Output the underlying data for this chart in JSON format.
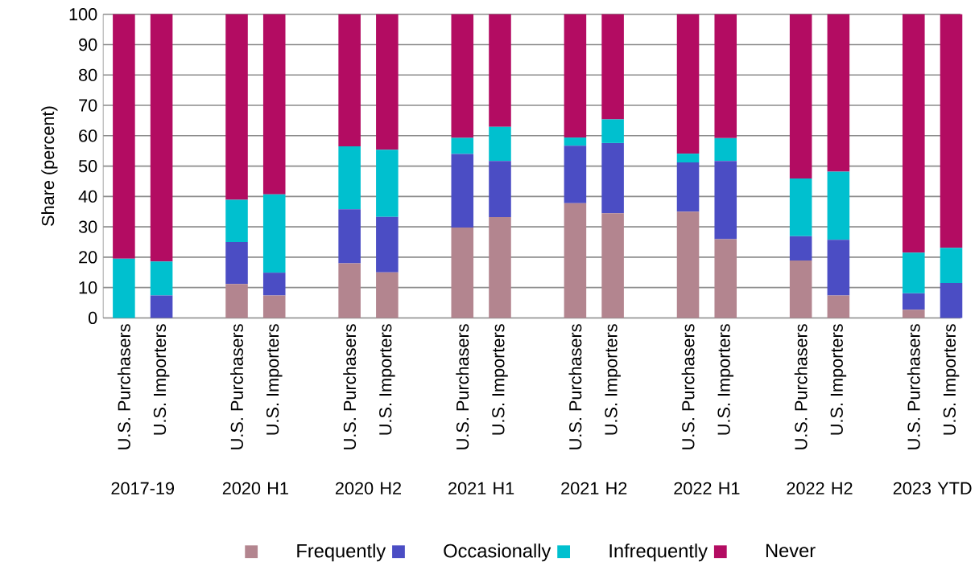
{
  "chart_data": {
    "type": "bar",
    "stacked": true,
    "ylabel": "Share (percent)",
    "categories": [
      "U.S. Purchasers",
      "U.S. Importers",
      null,
      "U.S. Purchasers",
      "U.S. Importers",
      null,
      "U.S. Purchasers",
      "U.S. Importers",
      null,
      "U.S. Purchasers",
      "U.S. Importers",
      null,
      "U.S. Purchasers",
      "U.S. Importers",
      null,
      "U.S. Purchasers",
      "U.S. Importers",
      null,
      "U.S. Purchasers",
      "U.S. Importers",
      null,
      "U.S. Purchasers",
      "U.S. Importers"
    ],
    "series": [
      {
        "name": "Frequently",
        "color": "#b3858f",
        "values": [
          0,
          0,
          null,
          11.2,
          7.4,
          null,
          18.0,
          15.0,
          null,
          29.8,
          33.2,
          null,
          37.8,
          34.5,
          null,
          35.0,
          25.9,
          null,
          18.9,
          7.4,
          null,
          2.7,
          0
        ]
      },
      {
        "name": "Occasionally",
        "color": "#4b4dc4",
        "values": [
          0,
          7.4,
          null,
          13.8,
          7.5,
          null,
          17.8,
          18.3,
          null,
          24.2,
          18.5,
          null,
          18.9,
          23.1,
          null,
          16.2,
          25.8,
          null,
          8.0,
          18.3,
          null,
          5.4,
          11.5
        ]
      },
      {
        "name": "Infrequently",
        "color": "#00c0cf",
        "values": [
          19.5,
          11.2,
          null,
          13.9,
          25.8,
          null,
          20.7,
          22.1,
          null,
          5.3,
          11.2,
          null,
          2.7,
          7.8,
          null,
          2.9,
          7.5,
          null,
          19.0,
          22.5,
          null,
          13.4,
          11.6
        ]
      },
      {
        "name": "Never",
        "color": "#b30c62",
        "values": [
          80.5,
          81.5,
          null,
          61.1,
          59.3,
          null,
          43.5,
          44.6,
          null,
          40.7,
          37.1,
          null,
          40.6,
          34.6,
          null,
          45.9,
          40.8,
          null,
          54.1,
          51.8,
          null,
          78.5,
          76.9
        ]
      }
    ],
    "annotations": [
      "2017-19",
      "2020 H1",
      "2020 H2",
      "2021 H1",
      "2021 H2",
      "2022 H1",
      "2022 H2",
      "2023 YTD"
    ],
    "ylim": [
      0,
      100
    ],
    "yticks": [
      0,
      10,
      20,
      30,
      40,
      50,
      60,
      70,
      80,
      90,
      100
    ],
    "grid": "y",
    "legend": "bottom"
  }
}
